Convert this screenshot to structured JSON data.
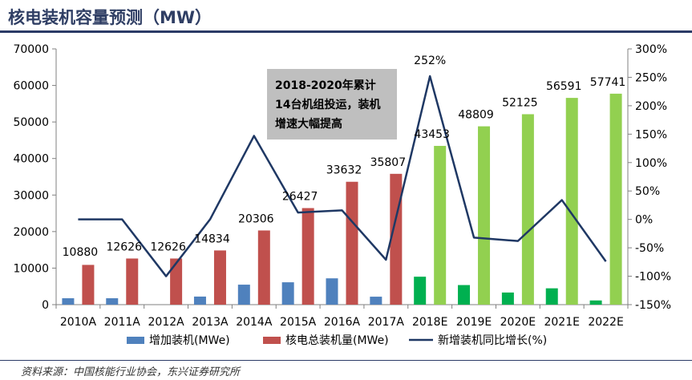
{
  "title": "核电装机容量预测（MW）",
  "source": "资料来源：中国核能行业协会，东兴证券研究所",
  "chart_data": {
    "type": "bar",
    "categories": [
      "2010A",
      "2011A",
      "2012A",
      "2013A",
      "2014A",
      "2015A",
      "2016A",
      "2017A",
      "2018E",
      "2019E",
      "2020E",
      "2021E",
      "2022E"
    ],
    "series": [
      {
        "name": "增加装机(MWe)",
        "kind": "bar",
        "axis": "left",
        "values": [
          1750,
          1750,
          0,
          2210,
          5470,
          6120,
          7200,
          2180,
          7650,
          5360,
          3320,
          4470,
          1150
        ],
        "colors": [
          "#4f81bd",
          "#4f81bd",
          "#4f81bd",
          "#4f81bd",
          "#4f81bd",
          "#4f81bd",
          "#4f81bd",
          "#4f81bd",
          "#00b050",
          "#00b050",
          "#00b050",
          "#00b050",
          "#00b050"
        ]
      },
      {
        "name": "核电总装机量(MWe)",
        "kind": "bar",
        "axis": "left",
        "values": [
          10880,
          12626,
          12626,
          14834,
          20306,
          26427,
          33632,
          35807,
          43453,
          48809,
          52125,
          56591,
          57741
        ],
        "colors": [
          "#c0504d",
          "#c0504d",
          "#c0504d",
          "#c0504d",
          "#c0504d",
          "#c0504d",
          "#c0504d",
          "#c0504d",
          "#92d050",
          "#92d050",
          "#92d050",
          "#92d050",
          "#92d050"
        ]
      },
      {
        "name": "新增装机同比增长(%)",
        "kind": "line",
        "axis": "right",
        "color": "#1f3864",
        "values": [
          0,
          0,
          -100,
          0,
          147,
          12,
          16,
          -71,
          252,
          -32,
          -38,
          34,
          -74
        ]
      }
    ],
    "total_labels": [
      "10880",
      "12626",
      "12626",
      "14834",
      "20306",
      "26427",
      "33632",
      "35807",
      "43453",
      "48809",
      "52125",
      "56591",
      "57741"
    ],
    "annotations": [
      {
        "text": "252%",
        "index": 8
      }
    ],
    "left_axis": {
      "min": 0,
      "max": 70000,
      "ticks": [
        "0",
        "10000",
        "20000",
        "30000",
        "40000",
        "50000",
        "60000",
        "70000"
      ]
    },
    "right_axis": {
      "min": -150,
      "max": 300,
      "ticks": [
        "-150%",
        "-100%",
        "-50%",
        "0%",
        "50%",
        "100%",
        "150%",
        "200%",
        "250%",
        "300%"
      ]
    },
    "callout": [
      "2018-2020年累计",
      "14台机组投运，装机",
      "增速大幅提高"
    ],
    "legend": {
      "position": "bottom"
    },
    "grid": false
  }
}
